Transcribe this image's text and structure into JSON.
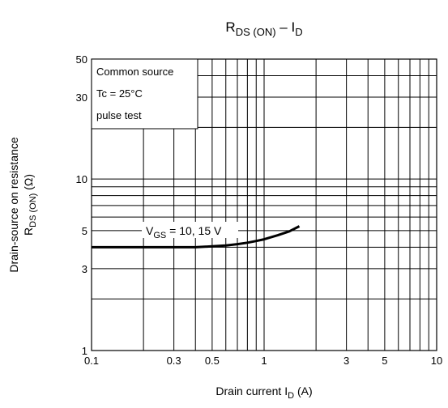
{
  "chart_data": {
    "type": "line",
    "title": {
      "main": "R",
      "sub": "DS (ON)",
      "sep": " – ",
      "main2": "I",
      "sub2": "D"
    },
    "xlabel": {
      "text": "Drain current  ",
      "var": "I",
      "sub": "D",
      "unit": "(A)"
    },
    "ylabel": {
      "line1": "Drain-source on resistance",
      "var": "R",
      "sub": "DS (ON)",
      "unit": "(Ω)"
    },
    "x_scale": "log",
    "y_scale": "log",
    "xlim": [
      0.1,
      10
    ],
    "ylim": [
      1,
      50
    ],
    "x_ticks": [
      {
        "v": 0.1,
        "label": "0.1"
      },
      {
        "v": 0.3,
        "label": "0.3"
      },
      {
        "v": 0.5,
        "label": "0.5"
      },
      {
        "v": 1,
        "label": "1"
      },
      {
        "v": 3,
        "label": "3"
      },
      {
        "v": 5,
        "label": "5"
      },
      {
        "v": 10,
        "label": "10"
      }
    ],
    "y_ticks": [
      {
        "v": 1,
        "label": "1"
      },
      {
        "v": 3,
        "label": "3"
      },
      {
        "v": 5,
        "label": "5"
      },
      {
        "v": 10,
        "label": "10"
      },
      {
        "v": 30,
        "label": "30"
      },
      {
        "v": 50,
        "label": "50"
      }
    ],
    "x_grid": [
      0.2,
      0.3,
      0.4,
      0.5,
      0.6,
      0.7,
      0.8,
      0.9,
      1,
      2,
      3,
      4,
      5,
      6,
      7,
      8,
      9
    ],
    "y_grid": [
      2,
      3,
      4,
      5,
      6,
      7,
      8,
      9,
      10,
      20,
      30,
      40
    ],
    "grid": true,
    "legend_box": {
      "lines": [
        "Common source",
        "Tc = 25°C",
        "pulse test"
      ],
      "placement": "top-left"
    },
    "series": [
      {
        "label": {
          "var": "V",
          "sub": "GS",
          "text": " = 10, 15 V"
        },
        "x": [
          0.1,
          0.2,
          0.3,
          0.4,
          0.5,
          0.6,
          0.7,
          0.8,
          0.9,
          1.0,
          1.2,
          1.4,
          1.6
        ],
        "y": [
          4.0,
          4.0,
          4.0,
          4.0,
          4.05,
          4.1,
          4.17,
          4.25,
          4.35,
          4.45,
          4.7,
          4.95,
          5.3
        ]
      }
    ]
  }
}
